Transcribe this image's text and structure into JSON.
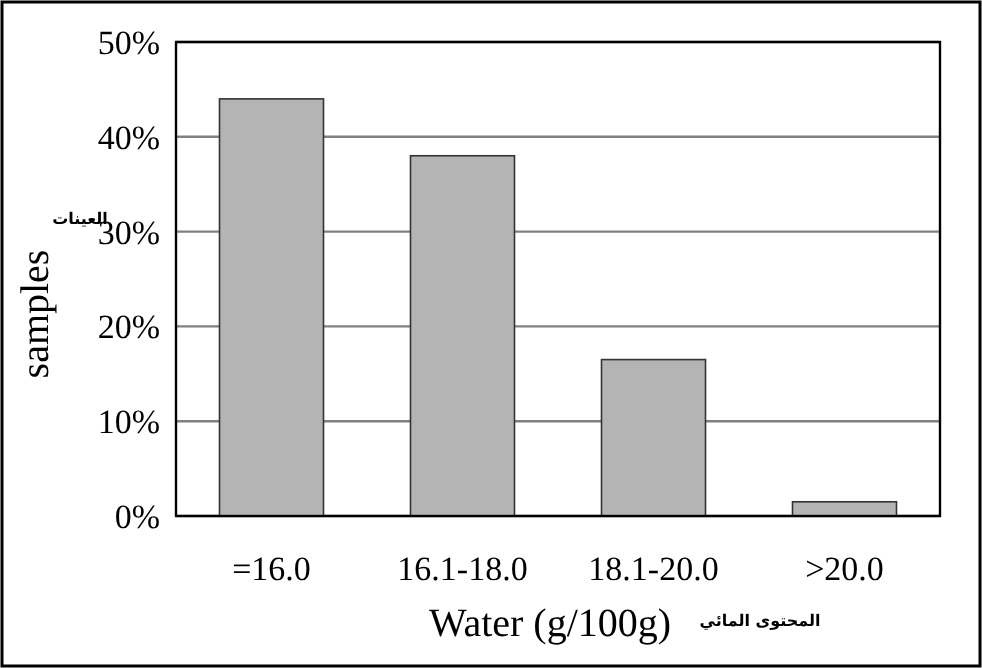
{
  "chart_data": {
    "type": "bar",
    "xlabel": "Water (g/100g)",
    "ylabel": "samples",
    "categories": [
      "=16.0",
      "16.1-18.0",
      "18.1-20.0",
      ">20.0"
    ],
    "values": [
      44,
      38,
      16.5,
      1.5
    ],
    "color": "#b4b4b4",
    "ylim": [
      0,
      50
    ],
    "yticks": [
      {
        "value": 0,
        "label": "0%"
      },
      {
        "value": 10,
        "label": "10%"
      },
      {
        "value": 20,
        "label": "20%"
      },
      {
        "value": 30,
        "label": "30%"
      },
      {
        "value": 40,
        "label": "40%"
      },
      {
        "value": 50,
        "label": "50%"
      }
    ],
    "grid": "y",
    "annotations": [
      "العينات",
      "المحتوى المائي"
    ]
  }
}
